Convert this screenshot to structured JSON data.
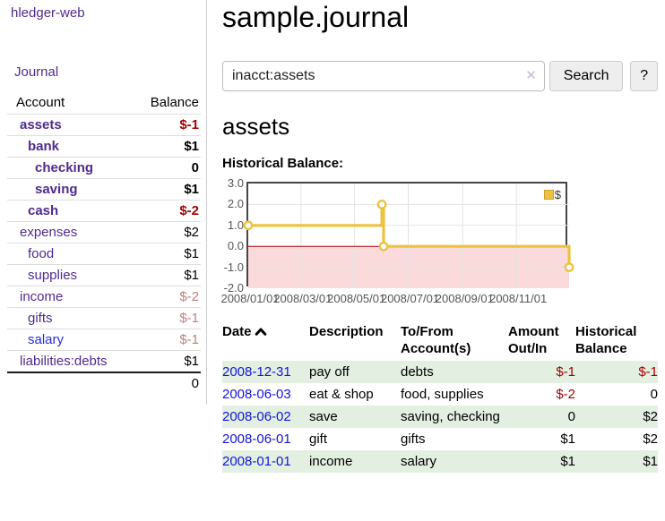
{
  "colors": {
    "purple_link": "#4f2b8f",
    "blue_link": "#2a2ae0",
    "date_link": "#1414dd",
    "negative_strong": "#a40000",
    "negative_soft": "#c07f7f",
    "row_stripe_green": "#e2efe1",
    "series_gold": "#edc240",
    "negative_region_fill": "#fadada",
    "zero_line": "#990000",
    "gridline": "#e3e3e3",
    "chart_border": "#454545"
  },
  "sidebar": {
    "brand": "hledger-web",
    "nav": {
      "journal": "Journal"
    },
    "accounts_table": {
      "headers": {
        "account": "Account",
        "balance": "Balance"
      },
      "rows": [
        {
          "account": "assets",
          "balance": "$-1",
          "depth": 1,
          "bold": true,
          "balance_style": "neg-strong",
          "account_style": "purple"
        },
        {
          "account": "bank",
          "balance": "$1",
          "depth": 2,
          "bold": true,
          "balance_style": "",
          "account_style": "purple"
        },
        {
          "account": "checking",
          "balance": "0",
          "depth": 3,
          "bold": true,
          "balance_style": "",
          "account_style": "purple"
        },
        {
          "account": "saving",
          "balance": "$1",
          "depth": 3,
          "bold": true,
          "balance_style": "",
          "account_style": "purple"
        },
        {
          "account": "cash",
          "balance": "$-2",
          "depth": 2,
          "bold": true,
          "balance_style": "neg-strong",
          "account_style": "purple"
        },
        {
          "account": "expenses",
          "balance": "$2",
          "depth": 1,
          "bold": false,
          "balance_style": "",
          "account_style": "purple"
        },
        {
          "account": "food",
          "balance": "$1",
          "depth": 2,
          "bold": false,
          "balance_style": "",
          "account_style": "purple"
        },
        {
          "account": "supplies",
          "balance": "$1",
          "depth": 2,
          "bold": false,
          "balance_style": "",
          "account_style": "purple"
        },
        {
          "account": "income",
          "balance": "$-2",
          "depth": 1,
          "bold": false,
          "balance_style": "neg-soft",
          "account_style": "purple"
        },
        {
          "account": "gifts",
          "balance": "$-1",
          "depth": 2,
          "bold": false,
          "balance_style": "neg-soft",
          "account_style": "purple"
        },
        {
          "account": "salary",
          "balance": "$-1",
          "depth": 2,
          "bold": false,
          "balance_style": "neg-soft",
          "account_style": "blue"
        },
        {
          "account": "liabilities:debts",
          "balance": "$1",
          "depth": 1,
          "bold": false,
          "balance_style": "",
          "account_style": "purple"
        }
      ],
      "total": "0"
    }
  },
  "main": {
    "title": "sample.journal",
    "search": {
      "value": "inacct:assets",
      "clear_icon": "✕",
      "search_button": "Search",
      "help_button": "?"
    },
    "section_heading": "assets",
    "chart_heading": "Historical Balance:"
  },
  "chart_data": {
    "type": "line",
    "title": "Historical Balance",
    "step": true,
    "grid": true,
    "ylim": [
      -2,
      3
    ],
    "x_range": [
      "2008-01-01",
      "2008-12-31"
    ],
    "y_ticks": [
      {
        "label": "3.0",
        "value": 3
      },
      {
        "label": "2.0",
        "value": 2
      },
      {
        "label": "1.0",
        "value": 1
      },
      {
        "label": "0.0",
        "value": 0
      },
      {
        "label": "-1.0",
        "value": -1
      },
      {
        "label": "-2.0",
        "value": -2
      }
    ],
    "x_ticks": [
      {
        "label": "2008/01/01",
        "date": "2008-01-01"
      },
      {
        "label": "2008/03/01",
        "date": "2008-03-01"
      },
      {
        "label": "2008/05/01",
        "date": "2008-05-01"
      },
      {
        "label": "2008/07/01",
        "date": "2008-07-01"
      },
      {
        "label": "2008/09/01",
        "date": "2008-09-01"
      },
      {
        "label": "2008/11/01",
        "date": "2008-11-01"
      }
    ],
    "legend": {
      "label": "$",
      "position": "top-right"
    },
    "negative_region_shaded": true,
    "zero_line": true,
    "series": [
      {
        "name": "$",
        "color": "#edc240",
        "points": [
          {
            "date": "2008-01-01",
            "value": 1
          },
          {
            "date": "2008-06-01",
            "value": 2
          },
          {
            "date": "2008-06-03",
            "value": 0
          },
          {
            "date": "2008-12-31",
            "value": -1
          }
        ]
      }
    ]
  },
  "register": {
    "headers": {
      "date": "Date",
      "description": "Description",
      "accounts": "To/From Account(s)",
      "amount": "Amount Out/In",
      "balance": "Historical Balance"
    },
    "rows": [
      {
        "date": "2008-12-31",
        "description": "pay off",
        "accounts": "debts",
        "amount": "$-1",
        "balance": "$-1",
        "amount_negative": true,
        "balance_negative": true
      },
      {
        "date": "2008-06-03",
        "description": "eat & shop",
        "accounts": "food, supplies",
        "amount": "$-2",
        "balance": "0",
        "amount_negative": true,
        "balance_negative": false
      },
      {
        "date": "2008-06-02",
        "description": "save",
        "accounts": "saving, checking",
        "amount": "0",
        "balance": "$2",
        "amount_negative": false,
        "balance_negative": false
      },
      {
        "date": "2008-06-01",
        "description": "gift",
        "accounts": "gifts",
        "amount": "$1",
        "balance": "$2",
        "amount_negative": false,
        "balance_negative": false
      },
      {
        "date": "2008-01-01",
        "description": "income",
        "accounts": "salary",
        "amount": "$1",
        "balance": "$1",
        "amount_negative": false,
        "balance_negative": false
      }
    ]
  }
}
